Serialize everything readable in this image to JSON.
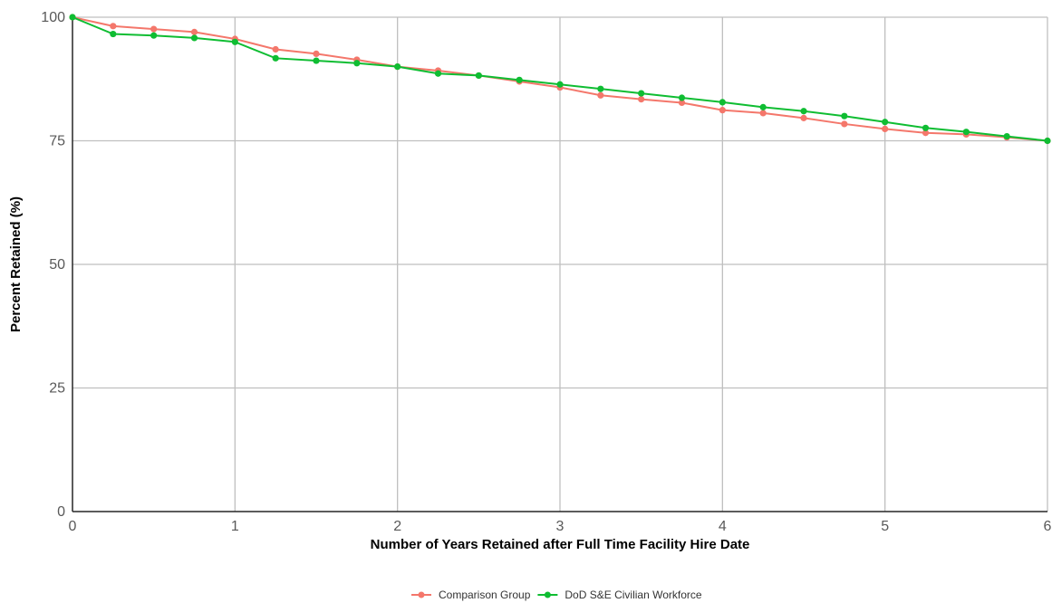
{
  "chart_data": {
    "type": "line",
    "title": "",
    "xlabel": "Number of Years Retained after Full Time Facility Hire Date",
    "ylabel": "Percent Retained (%)",
    "xlim": [
      0,
      6
    ],
    "ylim": [
      0,
      100
    ],
    "x_ticks": [
      0,
      1,
      2,
      3,
      4,
      5,
      6
    ],
    "y_ticks": [
      0,
      25,
      50,
      75,
      100
    ],
    "x_tick_labels": [
      "0",
      "1",
      "2",
      "3",
      "4",
      "5",
      "6"
    ],
    "y_tick_labels": [
      "0",
      "25",
      "50",
      "75",
      "100"
    ],
    "grid": true,
    "legend_position": "bottom",
    "x": [
      0,
      0.25,
      0.5,
      0.75,
      1,
      1.25,
      1.5,
      1.75,
      2,
      2.25,
      2.5,
      2.75,
      3,
      3.25,
      3.5,
      3.75,
      4,
      4.25,
      4.5,
      4.75,
      5,
      5.25,
      5.5,
      5.75,
      6
    ],
    "series": [
      {
        "name": "Comparison Group",
        "color": "#f4776b",
        "values": [
          100,
          98.2,
          97.6,
          97.0,
          95.6,
          93.5,
          92.6,
          91.4,
          90.0,
          89.2,
          88.2,
          87.0,
          85.8,
          84.2,
          83.4,
          82.7,
          81.2,
          80.6,
          79.6,
          78.4,
          77.4,
          76.6,
          76.3,
          75.7,
          75.0
        ]
      },
      {
        "name": "DoD S&E Civilian Workforce",
        "color": "#0fbd32",
        "values": [
          100,
          96.6,
          96.3,
          95.8,
          95.0,
          91.7,
          91.2,
          90.7,
          90.0,
          88.6,
          88.2,
          87.3,
          86.4,
          85.5,
          84.6,
          83.7,
          82.8,
          81.8,
          81.0,
          80.0,
          78.8,
          77.6,
          76.8,
          75.9,
          75.0
        ]
      }
    ]
  }
}
